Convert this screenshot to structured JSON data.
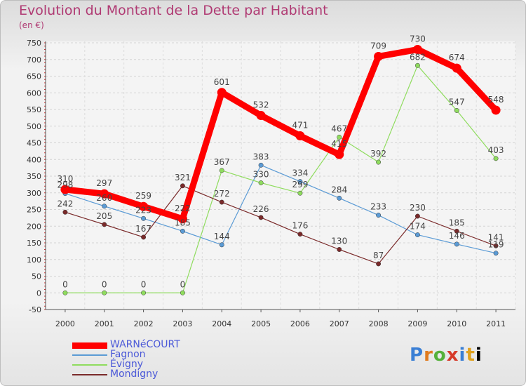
{
  "chart_data": {
    "type": "line",
    "title": "Evolution du Montant de la Dette par Habitant",
    "subtitle": "(en €)",
    "categories": [
      "2000",
      "2001",
      "2002",
      "2003",
      "2004",
      "2005",
      "2006",
      "2007",
      "2008",
      "2009",
      "2010",
      "2011"
    ],
    "ylim": [
      -50,
      750
    ],
    "yticks": [
      -50,
      0,
      50,
      100,
      150,
      200,
      250,
      300,
      350,
      400,
      450,
      500,
      550,
      600,
      650,
      700,
      750
    ],
    "grid": true,
    "legend_position": "bottom-left",
    "series": [
      {
        "name": "WARNéCOURT",
        "color": "#ff0000",
        "values": [
          310,
          297,
          259,
          222,
          601,
          532,
          471,
          415,
          709,
          730,
          674,
          548
        ]
      },
      {
        "name": "Fagnon",
        "color": "#5b9bd5",
        "values": [
          298,
          260,
          223,
          185,
          144,
          383,
          334,
          284,
          233,
          174,
          146,
          119
        ]
      },
      {
        "name": "Évigny",
        "color": "#8fdc5e",
        "values": [
          0,
          0,
          0,
          0,
          367,
          330,
          299,
          467,
          392,
          682,
          547,
          403
        ]
      },
      {
        "name": "Mondigny",
        "color": "#7a2a2a",
        "values": [
          242,
          205,
          167,
          321,
          272,
          226,
          176,
          130,
          87,
          230,
          185,
          141
        ]
      }
    ]
  },
  "logo_text": "Proxiti"
}
